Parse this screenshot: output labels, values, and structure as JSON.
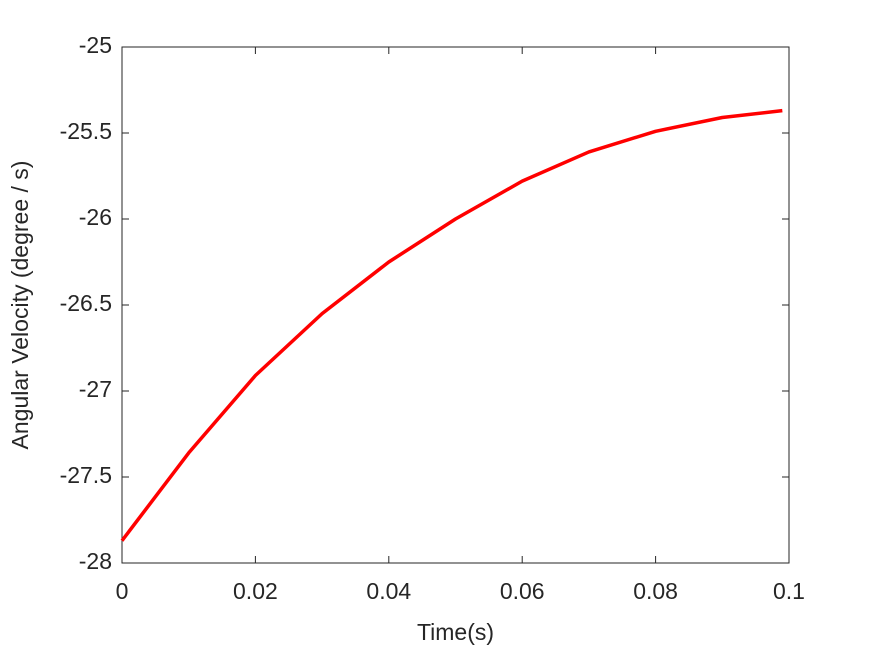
{
  "chart_data": {
    "type": "line",
    "x_label": "Time(s)",
    "y_label": "Angular Velocity (degree / s)",
    "x": [
      0,
      0.01,
      0.02,
      0.03,
      0.04,
      0.05,
      0.06,
      0.07,
      0.08,
      0.09,
      0.099
    ],
    "series": [
      {
        "color": "#ff0000",
        "values": [
          -27.87,
          -27.36,
          -26.91,
          -26.55,
          -26.25,
          -26.0,
          -25.78,
          -25.61,
          -25.49,
          -25.41,
          -25.37
        ]
      }
    ],
    "xlim": [
      0,
      0.1
    ],
    "xticks": [
      0,
      0.02,
      0.04,
      0.06,
      0.08,
      0.1
    ],
    "ylim": [
      -28,
      -25
    ],
    "yticks": [
      -28,
      -27.5,
      -27,
      -26.5,
      -26,
      -25.5,
      -25
    ],
    "grid": false
  }
}
